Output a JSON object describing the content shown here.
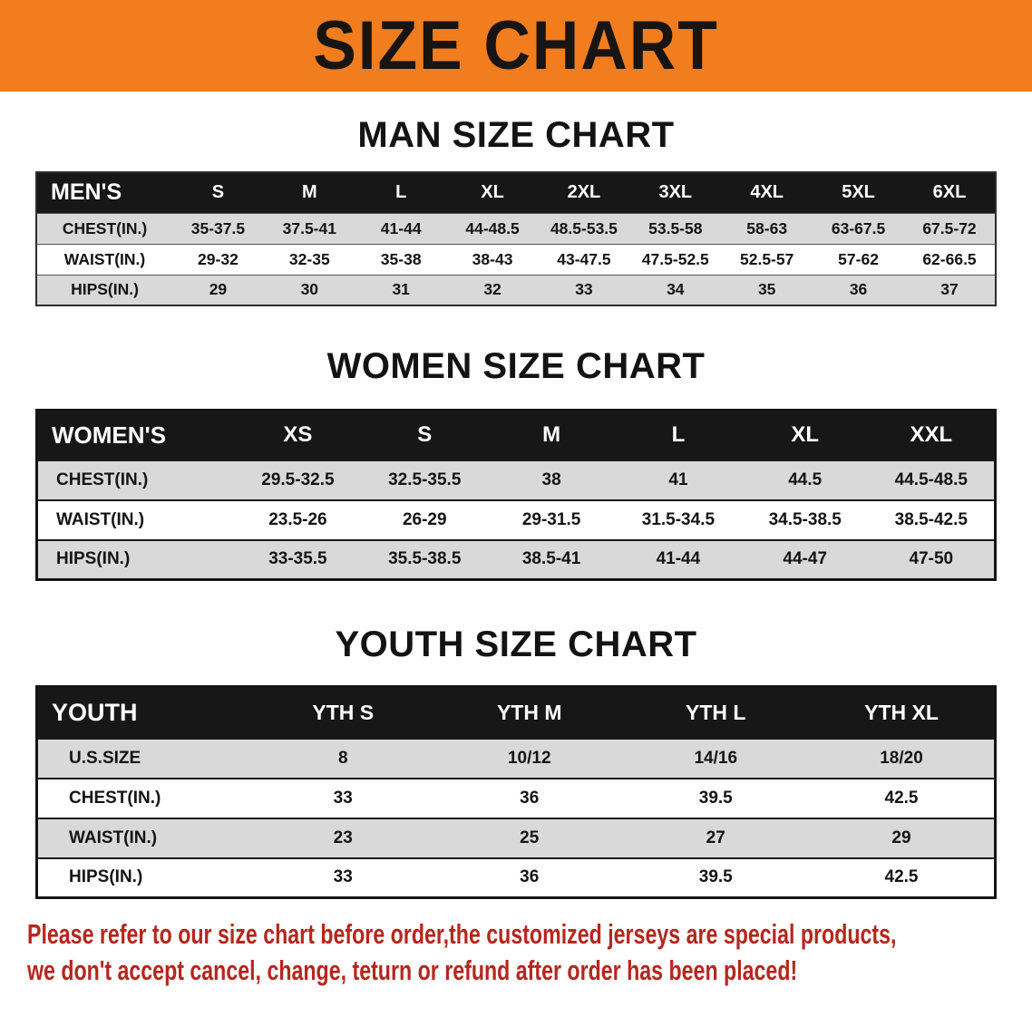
{
  "banner": {
    "title": "SIZE CHART"
  },
  "chart_data": [
    {
      "type": "table",
      "title": "MAN SIZE CHART",
      "columns": [
        "MEN'S",
        "S",
        "M",
        "L",
        "XL",
        "2XL",
        "3XL",
        "4XL",
        "5XL",
        "6XL"
      ],
      "rows": [
        {
          "label": "CHEST(IN.)",
          "values": [
            "35-37.5",
            "37.5-41",
            "41-44",
            "44-48.5",
            "48.5-53.5",
            "53.5-58",
            "58-63",
            "63-67.5",
            "67.5-72"
          ]
        },
        {
          "label": "WAIST(IN.)",
          "values": [
            "29-32",
            "32-35",
            "35-38",
            "38-43",
            "43-47.5",
            "47.5-52.5",
            "52.5-57",
            "57-62",
            "62-66.5"
          ]
        },
        {
          "label": "HIPS(IN.)",
          "values": [
            "29",
            "30",
            "31",
            "32",
            "33",
            "34",
            "35",
            "36",
            "37"
          ]
        }
      ]
    },
    {
      "type": "table",
      "title": "WOMEN SIZE CHART",
      "columns": [
        "WOMEN'S",
        "XS",
        "S",
        "M",
        "L",
        "XL",
        "XXL"
      ],
      "rows": [
        {
          "label": "CHEST(IN.)",
          "values": [
            "29.5-32.5",
            "32.5-35.5",
            "38",
            "41",
            "44.5",
            "44.5-48.5"
          ]
        },
        {
          "label": "WAIST(IN.)",
          "values": [
            "23.5-26",
            "26-29",
            "29-31.5",
            "31.5-34.5",
            "34.5-38.5",
            "38.5-42.5"
          ]
        },
        {
          "label": "HIPS(IN.)",
          "values": [
            "33-35.5",
            "35.5-38.5",
            "38.5-41",
            "41-44",
            "44-47",
            "47-50"
          ]
        }
      ]
    },
    {
      "type": "table",
      "title": "YOUTH SIZE CHART",
      "columns": [
        "YOUTH",
        "YTH S",
        "YTH M",
        "YTH L",
        "YTH XL"
      ],
      "rows": [
        {
          "label": "U.S.SIZE",
          "values": [
            "8",
            "10/12",
            "14/16",
            "18/20"
          ]
        },
        {
          "label": "CHEST(IN.)",
          "values": [
            "33",
            "36",
            "39.5",
            "42.5"
          ]
        },
        {
          "label": "WAIST(IN.)",
          "values": [
            "23",
            "25",
            "27",
            "29"
          ]
        },
        {
          "label": "HIPS(IN.)",
          "values": [
            "33",
            "36",
            "39.5",
            "42.5"
          ]
        }
      ]
    }
  ],
  "notice": {
    "line1": "Please refer to our size chart before order,the customized jerseys are special products,",
    "line2": "we don't accept cancel, change, teturn or refund after order has been placed!"
  },
  "colors": {
    "banner_orange": "#f17d1e",
    "table_header_black": "#171717",
    "row_stripe_gray": "#d9d9d9",
    "notice_red": "#b4271e"
  }
}
